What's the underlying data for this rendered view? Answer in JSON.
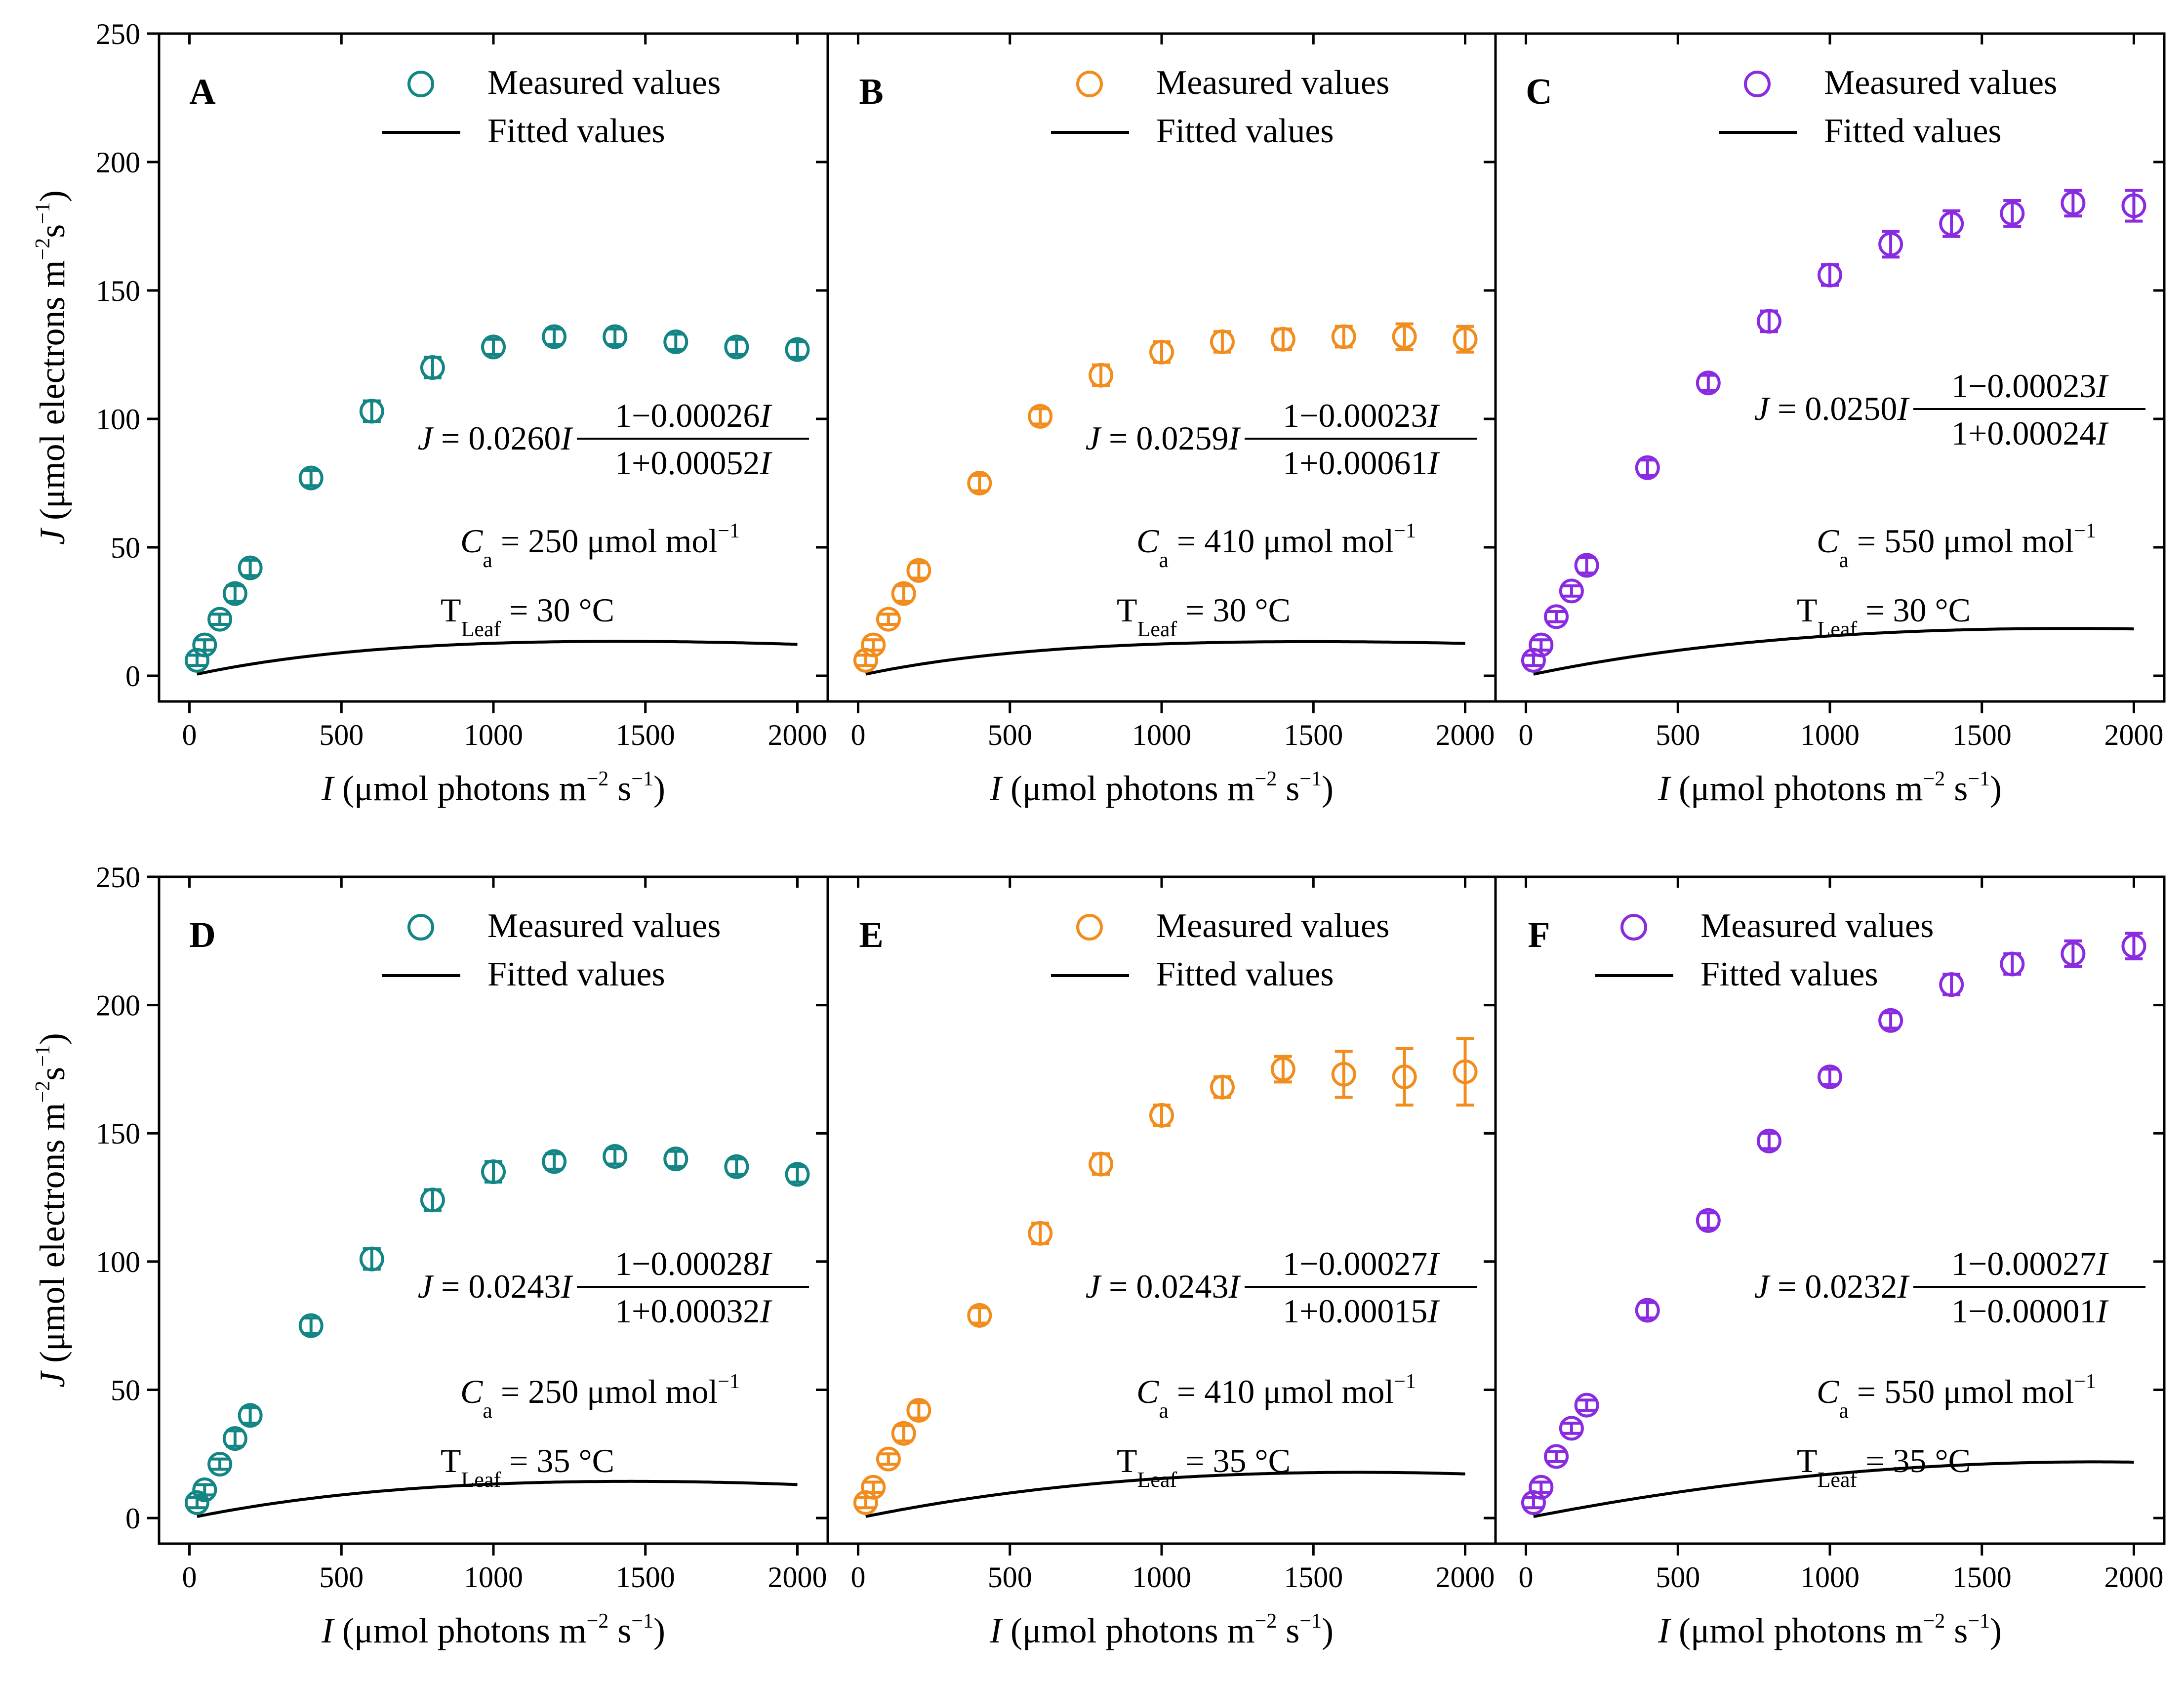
{
  "chart_data": [
    {
      "panel": "A",
      "type": "scatter",
      "ylabel": "J",
      "ylabel_units": "μmol electrons m−2s−1",
      "xlabel": "I",
      "xlabel_units": "μmol photons m−2 s−1",
      "xlim": [
        -100,
        2100
      ],
      "ylim": [
        -10,
        250
      ],
      "xticks": [
        0,
        500,
        1000,
        1500,
        2000
      ],
      "yticks": [
        0,
        50,
        100,
        150,
        200,
        250
      ],
      "legend": {
        "measured": "Measured values",
        "fitted": "Fitted values"
      },
      "series": [
        {
          "name": "Measured values",
          "color": "#138585",
          "x": [
            25,
            50,
            100,
            150,
            200,
            400,
            600,
            800,
            1000,
            1200,
            1400,
            1600,
            1800,
            2000
          ],
          "y": [
            6,
            12,
            22,
            32,
            42,
            77,
            103,
            120,
            128,
            132,
            132,
            130,
            128,
            127
          ],
          "err": [
            2,
            2,
            2,
            3,
            3,
            3,
            4,
            4,
            3,
            3,
            3,
            3,
            3,
            3
          ]
        }
      ],
      "fit": {
        "name": "Fitted values",
        "a": 0.026,
        "b": 0.00026,
        "c": 0.00052
      },
      "equation": {
        "lhs": "J",
        "eq_sign": "=",
        "coef": "0.0260",
        "var": "I",
        "numerator": "1−0.00026",
        "denominator": "1+0.00052"
      },
      "ca": {
        "symbol": "C",
        "sub": "a",
        "text": "= 250 μmol mol",
        "sup": "−1"
      },
      "tleaf": {
        "symbol": "T",
        "sub": "Leaf",
        "text": "= 30 °C"
      }
    },
    {
      "panel": "B",
      "type": "scatter",
      "xlabel": "I",
      "xlabel_units": "μmol photons m−2 s−1",
      "xlim": [
        -100,
        2100
      ],
      "ylim": [
        -10,
        250
      ],
      "xticks": [
        0,
        500,
        1000,
        1500,
        2000
      ],
      "legend": {
        "measured": "Measured values",
        "fitted": "Fitted values"
      },
      "series": [
        {
          "name": "Measured values",
          "color": "#f28c1d",
          "x": [
            25,
            50,
            100,
            150,
            200,
            400,
            600,
            800,
            1000,
            1200,
            1400,
            1600,
            1800,
            2000
          ],
          "y": [
            6,
            12,
            22,
            32,
            41,
            75,
            101,
            117,
            126,
            130,
            131,
            132,
            132,
            131
          ],
          "err": [
            2,
            2,
            2,
            3,
            3,
            3,
            3,
            4,
            4,
            4,
            4,
            4,
            5,
            5
          ]
        }
      ],
      "fit": {
        "name": "Fitted values",
        "a": 0.0259,
        "b": 0.00023,
        "c": 0.00061
      },
      "equation": {
        "lhs": "J",
        "eq_sign": "=",
        "coef": "0.0259",
        "var": "I",
        "numerator": "1−0.00023",
        "denominator": "1+0.00061"
      },
      "ca": {
        "symbol": "C",
        "sub": "a",
        "text": "= 410 μmol mol",
        "sup": "−1"
      },
      "tleaf": {
        "symbol": "T",
        "sub": "Leaf",
        "text": "= 30 °C"
      }
    },
    {
      "panel": "C",
      "type": "scatter",
      "xlabel": "I",
      "xlabel_units": "μmol photons m−2 s−1",
      "xlim": [
        -100,
        2100
      ],
      "ylim": [
        -10,
        250
      ],
      "xticks": [
        0,
        500,
        1000,
        1500,
        2000
      ],
      "legend": {
        "measured": "Measured values",
        "fitted": "Fitted values"
      },
      "series": [
        {
          "name": "Measured values",
          "color": "#8a2be2",
          "x": [
            25,
            50,
            100,
            150,
            200,
            400,
            600,
            800,
            1000,
            1200,
            1400,
            1600,
            1800,
            2000
          ],
          "y": [
            6,
            12,
            23,
            33,
            43,
            81,
            114,
            138,
            156,
            168,
            176,
            180,
            184,
            183
          ],
          "err": [
            2,
            2,
            2,
            2,
            3,
            3,
            3,
            4,
            4,
            5,
            5,
            5,
            5,
            6
          ]
        }
      ],
      "fit": {
        "name": "Fitted values",
        "a": 0.025,
        "b": 0.00023,
        "c": 0.00024
      },
      "equation": {
        "lhs": "J",
        "eq_sign": "=",
        "coef": "0.0250",
        "var": "I",
        "numerator": "1−0.00023",
        "denominator": "1+0.00024"
      },
      "ca": {
        "symbol": "C",
        "sub": "a",
        "text": "= 550 μmol mol",
        "sup": "−1"
      },
      "tleaf": {
        "symbol": "T",
        "sub": "Leaf",
        "text": "= 30 °C"
      }
    },
    {
      "panel": "D",
      "type": "scatter",
      "ylabel": "J",
      "ylabel_units": "μmol electrons m−2s−1",
      "xlabel": "I",
      "xlabel_units": "μmol photons m−2 s−1",
      "xlim": [
        -100,
        2100
      ],
      "ylim": [
        -10,
        250
      ],
      "xticks": [
        0,
        500,
        1000,
        1500,
        2000
      ],
      "yticks": [
        0,
        50,
        100,
        150,
        200,
        250
      ],
      "legend": {
        "measured": "Measured values",
        "fitted": "Fitted values"
      },
      "series": [
        {
          "name": "Measured values",
          "color": "#138585",
          "x": [
            25,
            50,
            100,
            150,
            200,
            400,
            600,
            800,
            1000,
            1200,
            1400,
            1600,
            1800,
            2000
          ],
          "y": [
            6,
            11,
            21,
            31,
            40,
            75,
            101,
            124,
            135,
            139,
            141,
            140,
            137,
            134
          ],
          "err": [
            2,
            2,
            2,
            3,
            3,
            3,
            4,
            4,
            4,
            3,
            3,
            3,
            3,
            3
          ]
        }
      ],
      "fit": {
        "name": "Fitted values",
        "a": 0.0243,
        "b": 0.00028,
        "c": 0.00032
      },
      "equation": {
        "lhs": "J",
        "eq_sign": "=",
        "coef": "0.0243",
        "var": "I",
        "numerator": "1−0.00028",
        "denominator": "1+0.00032"
      },
      "ca": {
        "symbol": "C",
        "sub": "a",
        "text": "= 250 μmol mol",
        "sup": "−1"
      },
      "tleaf": {
        "symbol": "T",
        "sub": "Leaf",
        "text": "= 35 °C"
      }
    },
    {
      "panel": "E",
      "type": "scatter",
      "xlabel": "I",
      "xlabel_units": "μmol photons m−2 s−1",
      "xlim": [
        -100,
        2100
      ],
      "ylim": [
        -10,
        250
      ],
      "xticks": [
        0,
        500,
        1000,
        1500,
        2000
      ],
      "legend": {
        "measured": "Measured values",
        "fitted": "Fitted values"
      },
      "series": [
        {
          "name": "Measured values",
          "color": "#f28c1d",
          "x": [
            25,
            50,
            100,
            150,
            200,
            400,
            600,
            800,
            1000,
            1200,
            1400,
            1600,
            1800,
            2000
          ],
          "y": [
            6,
            12,
            23,
            33,
            42,
            79,
            111,
            138,
            157,
            168,
            175,
            173,
            172,
            174
          ],
          "err": [
            2,
            2,
            2,
            3,
            3,
            3,
            4,
            4,
            4,
            4,
            5,
            9,
            11,
            13
          ]
        }
      ],
      "fit": {
        "name": "Fitted values",
        "a": 0.0243,
        "b": 0.00027,
        "c": 0.00015
      },
      "equation": {
        "lhs": "J",
        "eq_sign": "=",
        "coef": "0.0243",
        "var": "I",
        "numerator": "1−0.00027",
        "denominator": "1+0.00015"
      },
      "ca": {
        "symbol": "C",
        "sub": "a",
        "text": "= 410 μmol mol",
        "sup": "−1"
      },
      "tleaf": {
        "symbol": "T",
        "sub": "Leaf",
        "text": "= 35 °C"
      }
    },
    {
      "panel": "F",
      "type": "scatter",
      "xlabel": "I",
      "xlabel_units": "μmol photons m−2 s−1",
      "xlim": [
        -100,
        2100
      ],
      "ylim": [
        -10,
        250
      ],
      "xticks": [
        0,
        500,
        1000,
        1500,
        2000
      ],
      "legend": {
        "measured": "Measured values",
        "fitted": "Fitted values"
      },
      "series": [
        {
          "name": "Measured values",
          "color": "#8a2be2",
          "x": [
            25,
            50,
            100,
            150,
            200,
            400,
            600,
            800,
            1000,
            1200,
            1400,
            1600,
            1800,
            2000
          ],
          "y": [
            6,
            12,
            24,
            35,
            44,
            81,
            116,
            147,
            172,
            194,
            208,
            216,
            220,
            223
          ],
          "err": [
            2,
            2,
            2,
            2,
            2,
            3,
            3,
            3,
            3,
            3,
            4,
            4,
            5,
            5
          ]
        }
      ],
      "fit": {
        "name": "Fitted values",
        "a": 0.0232,
        "b": 0.00027,
        "c": -1e-05
      },
      "equation": {
        "lhs": "J",
        "eq_sign": "=",
        "coef": "0.0232",
        "var": "I",
        "numerator": "1−0.00027",
        "denominator": "1−0.00001"
      },
      "ca": {
        "symbol": "C",
        "sub": "a",
        "text": "= 550 μmol mol",
        "sup": "−1"
      },
      "tleaf": {
        "symbol": "T",
        "sub": "Leaf",
        "text": "= 35 °C"
      }
    }
  ]
}
